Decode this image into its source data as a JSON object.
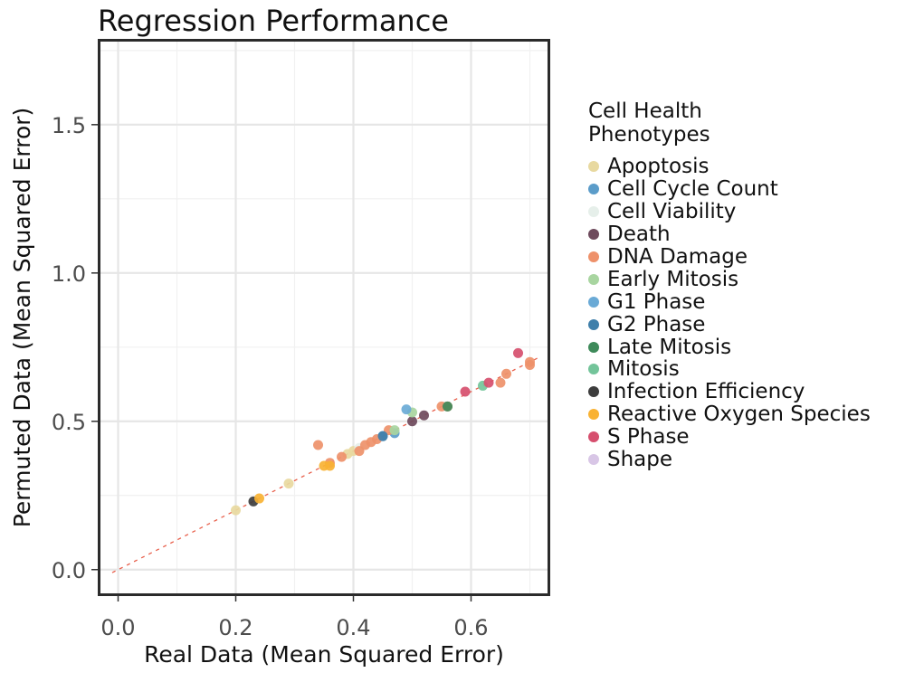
{
  "chart_data": {
    "type": "scatter",
    "title": "Regression Performance",
    "xlabel": "Real Data (Mean Squared Error)",
    "ylabel": "Permuted Data (Mean Squared Error)",
    "xlim": [
      -0.03,
      0.73
    ],
    "ylim": [
      -0.08,
      1.78
    ],
    "xticks": [
      "0.0",
      "0.2",
      "0.4",
      "0.6"
    ],
    "yticks": [
      "0.0",
      "0.5",
      "1.0",
      "1.5"
    ],
    "grid": true,
    "reference_line": {
      "style": "dashed",
      "color": "#e8604c",
      "slope": 1,
      "intercept": 0
    },
    "legend": {
      "title_line1": "Cell Health",
      "title_line2": "Phenotypes",
      "position": "right"
    },
    "series": [
      {
        "name": "Apoptosis",
        "color": "#e8d9a0",
        "points": [
          [
            0.2,
            0.2
          ],
          [
            0.29,
            0.29
          ],
          [
            0.39,
            0.39
          ],
          [
            0.4,
            0.4
          ]
        ]
      },
      {
        "name": "Cell Cycle Count",
        "color": "#5b9cc9",
        "points": [
          [
            0.45,
            0.45
          ],
          [
            0.47,
            0.46
          ]
        ]
      },
      {
        "name": "Cell Viability",
        "color": "#e6efea",
        "points": [
          [
            0.41,
            0.41
          ]
        ]
      },
      {
        "name": "Death",
        "color": "#6e4a5c",
        "points": [
          [
            0.5,
            0.5
          ],
          [
            0.52,
            0.52
          ]
        ]
      },
      {
        "name": "DNA Damage",
        "color": "#ee916a",
        "points": [
          [
            0.34,
            0.42
          ],
          [
            0.36,
            0.36
          ],
          [
            0.38,
            0.38
          ],
          [
            0.41,
            0.4
          ],
          [
            0.42,
            0.42
          ],
          [
            0.43,
            0.43
          ],
          [
            0.44,
            0.44
          ],
          [
            0.46,
            0.47
          ],
          [
            0.55,
            0.55
          ],
          [
            0.56,
            0.55
          ],
          [
            0.65,
            0.63
          ],
          [
            0.66,
            0.66
          ],
          [
            0.7,
            0.69
          ],
          [
            0.7,
            0.7
          ]
        ]
      },
      {
        "name": "Early Mitosis",
        "color": "#a8d5a0",
        "points": [
          [
            0.47,
            0.47
          ],
          [
            0.5,
            0.53
          ]
        ]
      },
      {
        "name": "G1 Phase",
        "color": "#6aaad6",
        "points": [
          [
            0.49,
            0.54
          ]
        ]
      },
      {
        "name": "G2 Phase",
        "color": "#3f7faa",
        "points": [
          [
            0.45,
            0.45
          ]
        ]
      },
      {
        "name": "Late Mitosis",
        "color": "#3e8a5a",
        "points": [
          [
            0.56,
            0.55
          ]
        ]
      },
      {
        "name": "Mitosis",
        "color": "#73c49a",
        "points": [
          [
            0.62,
            0.62
          ]
        ]
      },
      {
        "name": "Infection Efficiency",
        "color": "#3d3d3d",
        "points": [
          [
            0.23,
            0.23
          ]
        ]
      },
      {
        "name": "Reactive Oxygen Species",
        "color": "#f9b233",
        "points": [
          [
            0.24,
            0.24
          ],
          [
            0.35,
            0.35
          ],
          [
            0.36,
            0.35
          ]
        ]
      },
      {
        "name": "S Phase",
        "color": "#d64f6e",
        "points": [
          [
            0.59,
            0.6
          ],
          [
            0.63,
            0.63
          ],
          [
            0.68,
            0.73
          ]
        ]
      },
      {
        "name": "Shape",
        "color": "#d8c6e6",
        "points": []
      }
    ]
  }
}
